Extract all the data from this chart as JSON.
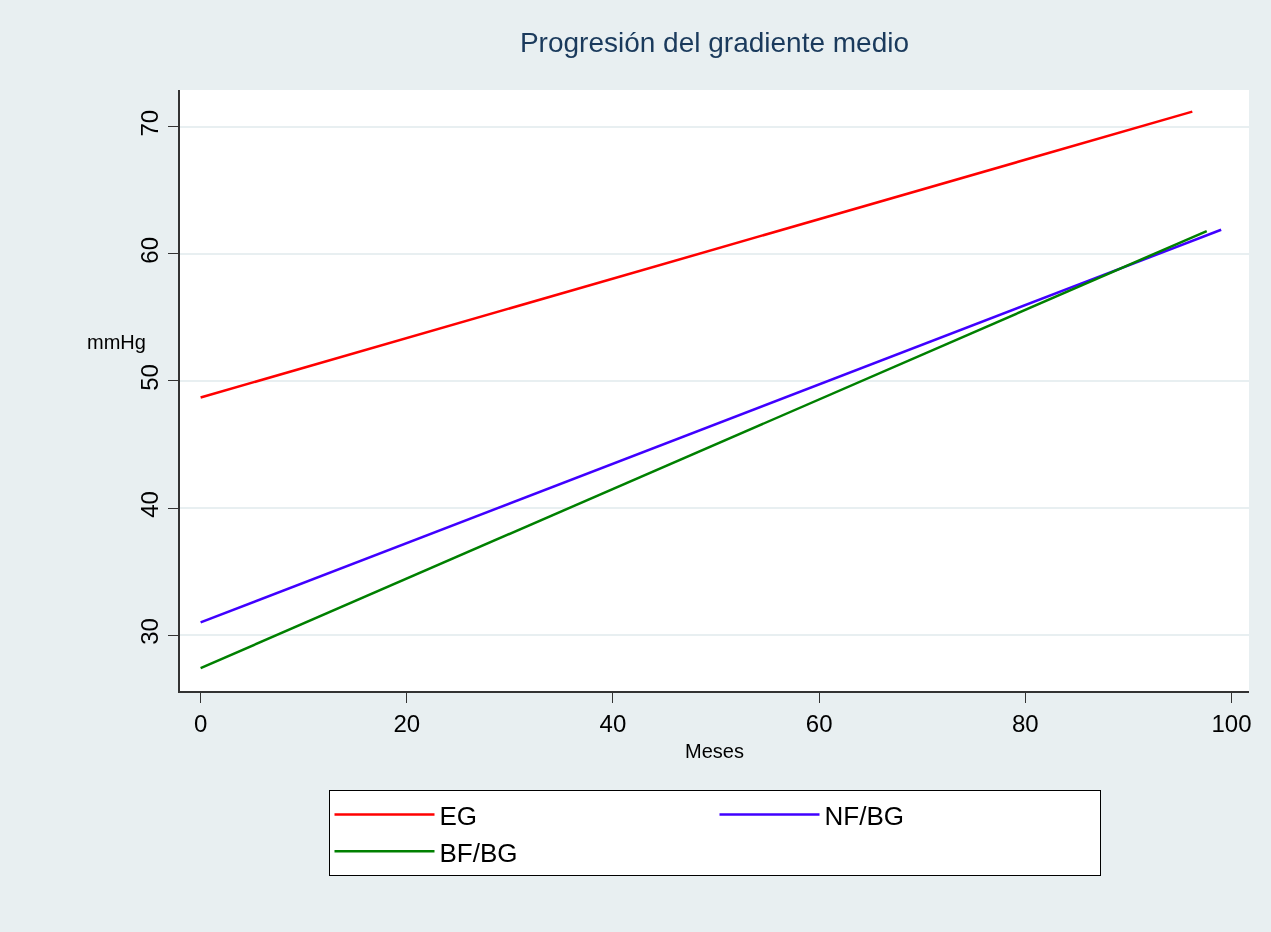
{
  "chart_data": {
    "type": "line",
    "title": "Progresión del gradiente medio",
    "xlabel": "Meses",
    "ylabel": "mmHg",
    "series": [
      {
        "name": "EG",
        "color": "#ff0000",
        "x": [
          0,
          96.2
        ],
        "values": [
          48.7,
          71.2
        ]
      },
      {
        "name": "NF/BG",
        "color": "#4000ff",
        "x": [
          0,
          99.0
        ],
        "values": [
          31.0,
          61.9
        ]
      },
      {
        "name": "BF/BG",
        "color": "#008000",
        "x": [
          0,
          97.6
        ],
        "values": [
          27.4,
          61.8
        ]
      }
    ],
    "xlim": [
      -2,
      101.7
    ],
    "xticks": [
      0,
      20,
      40,
      60,
      80,
      100
    ],
    "ylim": [
      25.6,
      72.9
    ],
    "yticks": [
      30,
      40,
      50,
      60,
      70
    ],
    "grid": "y",
    "legend": "bottom",
    "marker": "none",
    "line_style": "solid"
  }
}
